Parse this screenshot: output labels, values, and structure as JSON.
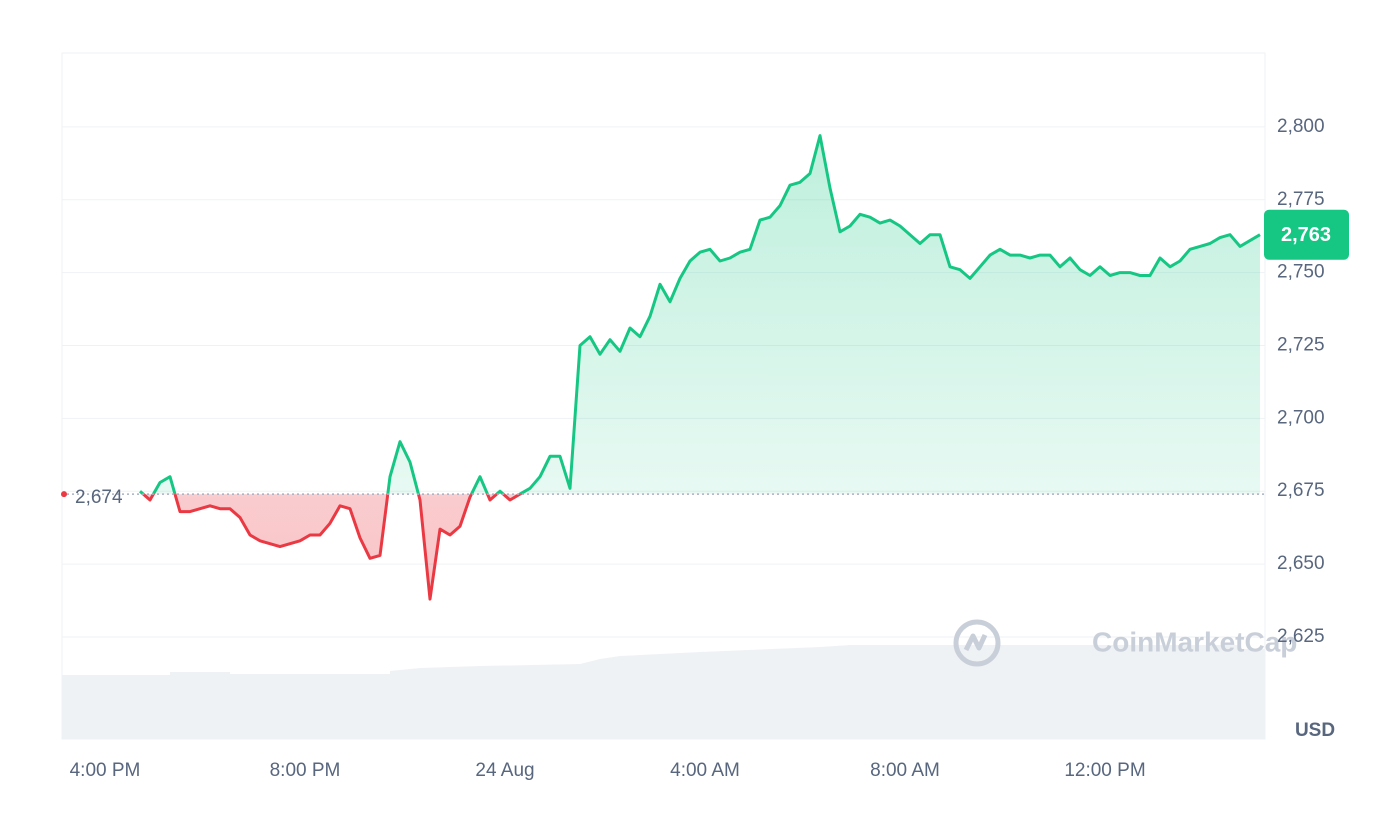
{
  "chart_data": {
    "type": "line",
    "x": [
      0.7,
      0.9,
      1.1,
      1.3,
      1.5,
      1.7,
      1.9,
      2.1,
      2.3,
      2.5,
      2.7,
      2.9,
      3.1,
      3.3,
      3.5,
      3.7,
      3.9,
      4.1,
      4.3,
      4.5,
      4.7,
      4.9,
      5.1,
      5.3,
      5.5,
      5.7,
      5.9,
      6.1,
      6.3,
      6.5,
      6.7,
      6.9,
      7.1,
      7.3,
      7.5,
      7.7,
      7.9,
      8.1,
      8.3,
      8.5,
      8.7,
      8.9,
      9.1,
      9.3,
      9.5,
      9.7,
      9.9,
      10.1,
      10.3,
      10.5,
      10.7,
      10.9,
      11.1,
      11.3,
      11.5,
      11.7,
      11.9,
      12.1,
      12.3,
      12.5,
      12.7,
      12.9,
      13.1,
      13.3,
      13.5,
      13.7,
      13.9,
      14.1,
      14.3,
      14.5,
      14.7,
      14.9,
      15.1,
      15.3,
      15.5,
      15.7,
      15.9,
      16.1,
      16.3,
      16.5,
      16.7,
      16.9,
      17.1,
      17.3,
      17.5,
      17.7,
      17.9,
      18.1,
      18.3,
      18.5,
      18.7,
      18.9,
      19.1,
      19.3,
      19.5,
      19.7,
      19.9,
      20.1,
      20.3,
      20.5,
      20.7,
      20.9,
      21.1,
      21.3,
      21.5,
      21.7,
      21.9,
      22.1,
      22.3,
      22.5,
      22.7,
      22.9,
      23.1
    ],
    "series": [
      {
        "name": "USD",
        "up_color": "#16c784",
        "down_color": "#ea3943",
        "values": [
          2675,
          2672,
          2678,
          2680,
          2668,
          2668,
          2669,
          2670,
          2669,
          2669,
          2666,
          2660,
          2658,
          2657,
          2656,
          2657,
          2658,
          2660,
          2660,
          2664,
          2670,
          2669,
          2659,
          2652,
          2653,
          2680,
          2692,
          2685,
          2672,
          2638,
          2662,
          2660,
          2663,
          2673,
          2680,
          2672,
          2675,
          2672,
          2674,
          2676,
          2680,
          2687,
          2687,
          2676,
          2725,
          2728,
          2722,
          2727,
          2723,
          2731,
          2728,
          2735,
          2746,
          2740,
          2748,
          2754,
          2757,
          2758,
          2754,
          2755,
          2757,
          2758,
          2768,
          2769,
          2773,
          2780,
          2781,
          2784,
          2797,
          2779,
          2764,
          2766,
          2770,
          2769,
          2767,
          2768,
          2766,
          2763,
          2760,
          2763,
          2763,
          2752,
          2751,
          2748,
          2752,
          2756,
          2758,
          2756,
          2756,
          2755,
          2756,
          2756,
          2752,
          2755,
          2751,
          2749,
          2752,
          2749,
          2750,
          2750,
          2749,
          2749,
          2755,
          2752,
          2754,
          2758,
          2759,
          2760,
          2762,
          2763,
          2759,
          2761,
          2763
        ]
      }
    ],
    "reference": {
      "value": 2674,
      "label": "2,674"
    },
    "last_price": {
      "value": 2763,
      "label": "2,763"
    },
    "currency": "USD",
    "watermark": "CoinMarketCap",
    "xlim": [
      -0.86,
      23.2
    ],
    "xticks": [
      {
        "value": 0,
        "label": "4:00 PM"
      },
      {
        "value": 4,
        "label": "8:00 PM"
      },
      {
        "value": 8,
        "label": "24 Aug"
      },
      {
        "value": 12,
        "label": "4:00 AM"
      },
      {
        "value": 16,
        "label": "8:00 AM"
      },
      {
        "value": 20,
        "label": "12:00 PM"
      }
    ],
    "ylim": [
      2590,
      2825
    ],
    "yticks": [
      {
        "value": 2625,
        "label": "2,625"
      },
      {
        "value": 2650,
        "label": "2,650"
      },
      {
        "value": 2675,
        "label": "2,675"
      },
      {
        "value": 2700,
        "label": "2,700"
      },
      {
        "value": 2725,
        "label": "2,725"
      },
      {
        "value": 2750,
        "label": "2,750"
      },
      {
        "value": 2775,
        "label": "2,775"
      },
      {
        "value": 2800,
        "label": "2,800"
      }
    ],
    "grid": true
  }
}
